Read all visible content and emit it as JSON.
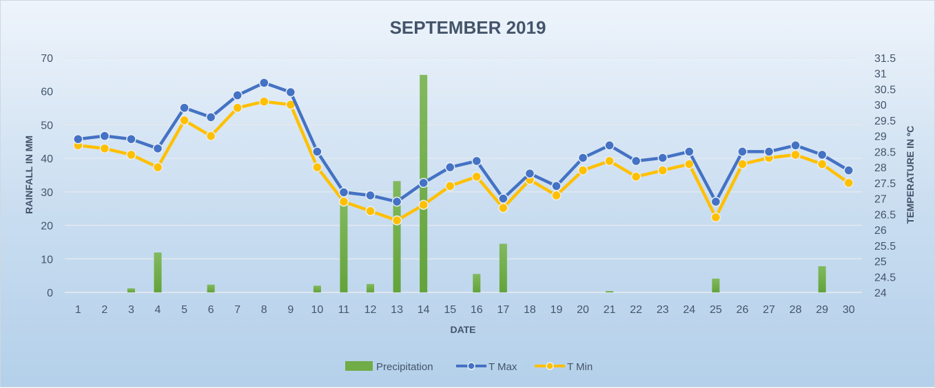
{
  "chart_data": {
    "type": "bar+line",
    "title": "SEPTEMBER 2019",
    "xlabel": "DATE",
    "ylabel": "RAINFALL IN MM",
    "y2label": "TEMPERATURE IN ºC",
    "categories": [
      "1",
      "2",
      "3",
      "4",
      "5",
      "6",
      "7",
      "8",
      "9",
      "10",
      "11",
      "12",
      "13",
      "14",
      "15",
      "16",
      "17",
      "18",
      "19",
      "20",
      "21",
      "22",
      "23",
      "24",
      "25",
      "26",
      "27",
      "28",
      "29",
      "30"
    ],
    "ylim": [
      0,
      70
    ],
    "yticks": [
      "0",
      "10",
      "20",
      "30",
      "40",
      "50",
      "60",
      "70"
    ],
    "y2lim": [
      24,
      31.5
    ],
    "y2ticks": [
      "24",
      "24.5",
      "25",
      "25.5",
      "26",
      "26.5",
      "27",
      "27.5",
      "28",
      "28.5",
      "29",
      "29.5",
      "30",
      "30.5",
      "31",
      "31.5"
    ],
    "grid": true,
    "legend_position": "bottom",
    "series": [
      {
        "name": "Precipitation",
        "type": "bar",
        "axis": "left",
        "color": "#70ad47",
        "values": [
          0,
          0,
          1.2,
          11.9,
          0,
          2.3,
          0,
          0,
          0,
          2.0,
          28,
          2.5,
          33.2,
          64.9,
          0,
          5.5,
          14.5,
          0,
          0,
          0,
          0.4,
          0,
          0,
          0,
          4.1,
          0,
          0,
          0,
          7.8,
          0
        ]
      },
      {
        "name": "T Max",
        "type": "line",
        "axis": "right",
        "color": "#4472c4",
        "values": [
          28.9,
          29.0,
          28.9,
          28.6,
          29.9,
          29.6,
          30.3,
          30.7,
          30.4,
          28.5,
          27.2,
          27.1,
          26.9,
          27.5,
          28.0,
          28.2,
          27.0,
          27.8,
          27.4,
          28.3,
          28.7,
          28.2,
          28.3,
          28.5,
          26.9,
          28.5,
          28.5,
          28.7,
          28.4,
          27.9
        ]
      },
      {
        "name": "T Min",
        "type": "line",
        "axis": "right",
        "color": "#ffc000",
        "values": [
          28.7,
          28.6,
          28.4,
          28.0,
          29.5,
          29.0,
          29.9,
          30.1,
          30.0,
          28.0,
          26.9,
          26.6,
          26.3,
          26.8,
          27.4,
          27.7,
          26.7,
          27.6,
          27.1,
          27.9,
          28.2,
          27.7,
          27.9,
          28.1,
          26.4,
          28.1,
          28.3,
          28.4,
          28.1,
          27.5
        ]
      }
    ]
  }
}
